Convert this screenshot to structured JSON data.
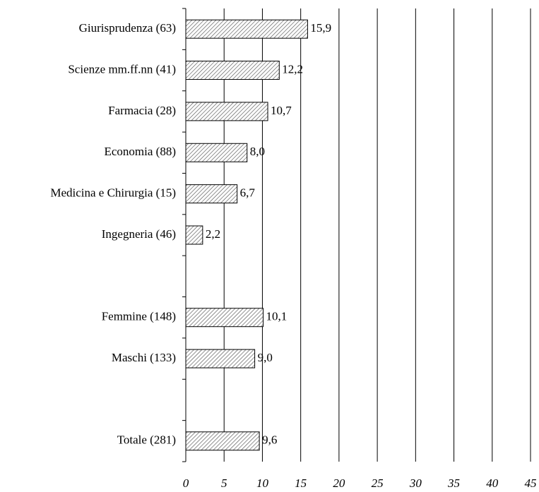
{
  "chart_data": {
    "type": "barh",
    "categories": [
      "Giurisprudenza (63)",
      "Scienze mm.ff.nn (41)",
      "Farmacia (28)",
      "Economia (88)",
      "Medicina e Chirurgia (15)",
      "Ingegneria (46)",
      null,
      "Femmine (148)",
      "Maschi (133)",
      null,
      "Totale (281)"
    ],
    "values": [
      15.9,
      12.2,
      10.7,
      8.0,
      6.7,
      2.2,
      null,
      10.1,
      9.0,
      null,
      9.6
    ],
    "value_labels": [
      "15,9",
      "12,2",
      "10,7",
      "8,0",
      "6,7",
      "2,2",
      null,
      "10,1",
      "9,0",
      null,
      "9,6"
    ],
    "xlim": [
      0,
      45
    ],
    "xticks": [
      0,
      5,
      10,
      15,
      20,
      25,
      30,
      35,
      40,
      45
    ],
    "grid": true,
    "color": "#555555"
  }
}
